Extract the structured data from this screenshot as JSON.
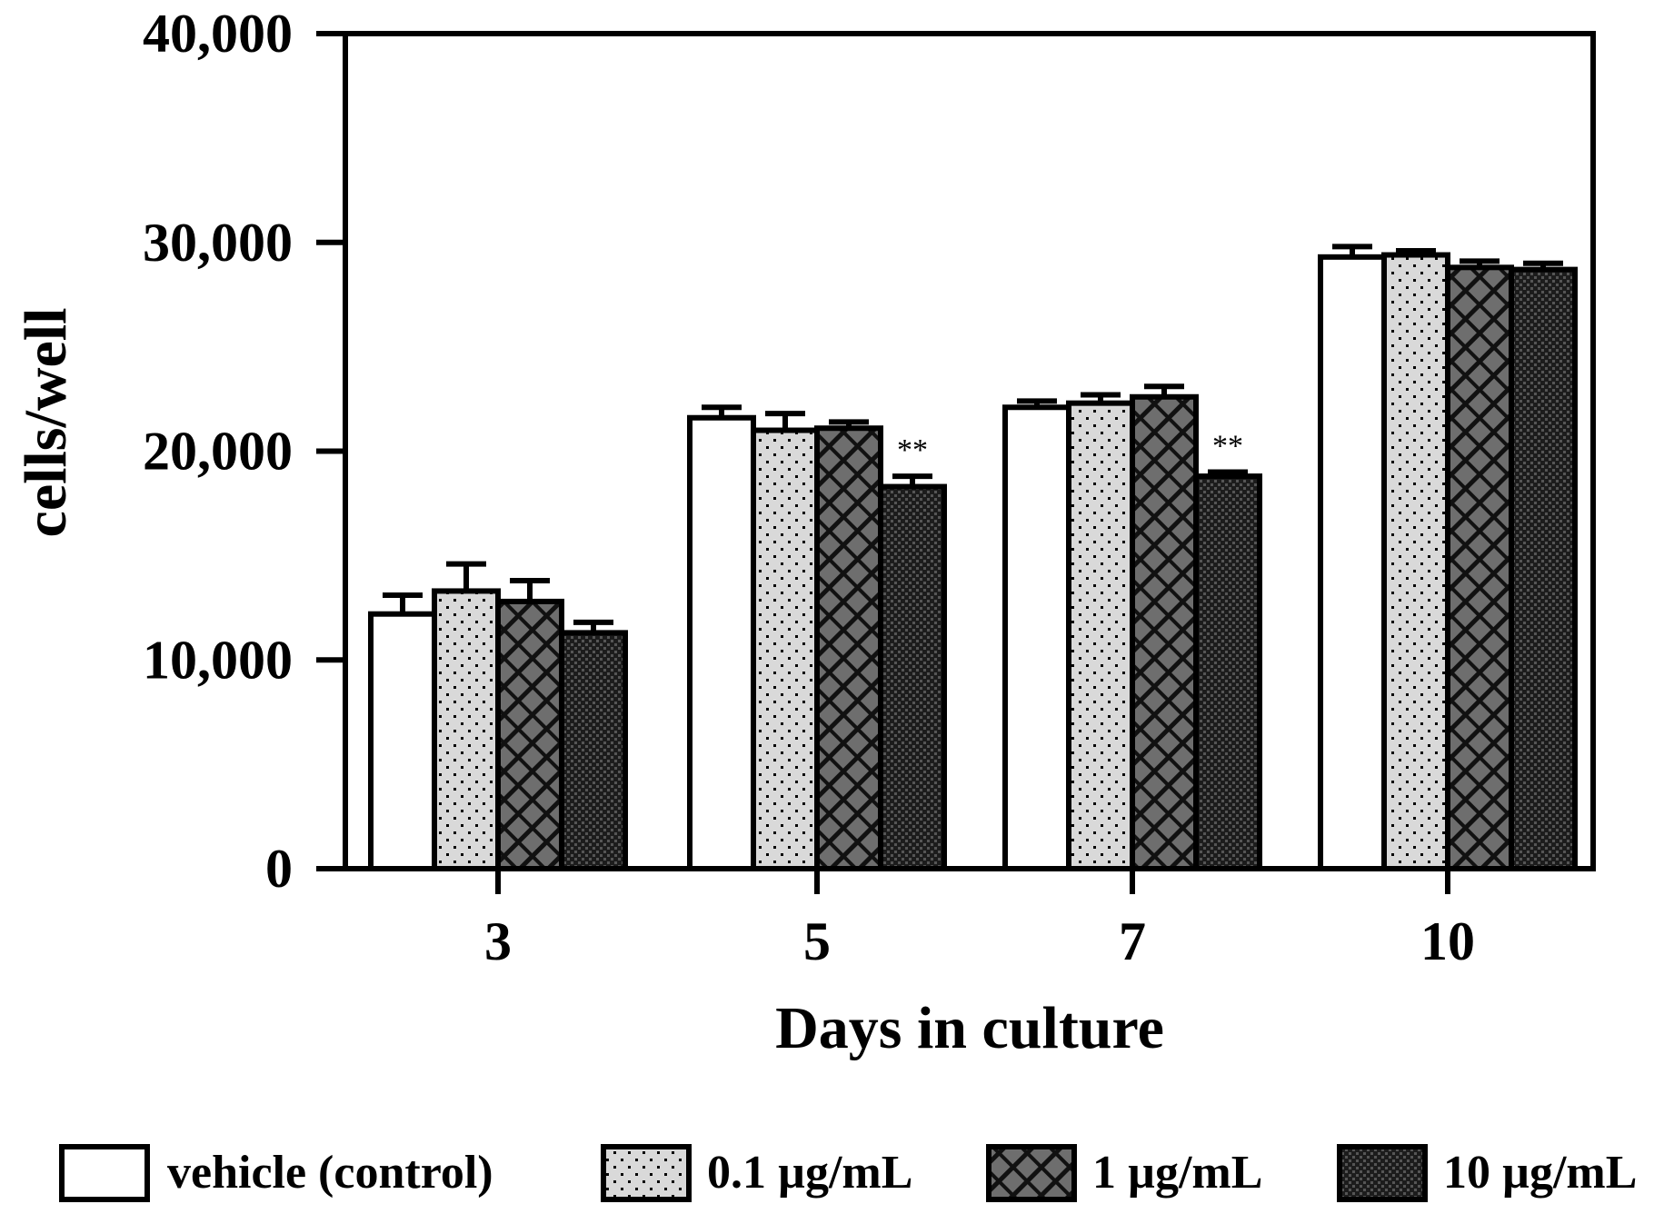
{
  "chart_data": {
    "type": "bar",
    "title": "",
    "xlabel": "Days in culture",
    "ylabel": "cells/well",
    "ylim": [
      0,
      40000
    ],
    "yticks": [
      0,
      10000,
      20000,
      30000,
      40000
    ],
    "ytick_labels": [
      "0",
      "10,000",
      "20,000",
      "30,000",
      "40,000"
    ],
    "categories": [
      "3",
      "5",
      "7",
      "10"
    ],
    "series": [
      {
        "name": "vehicle (control)",
        "pattern": "white",
        "values": [
          12200,
          21600,
          22100,
          29300
        ],
        "errors": [
          900,
          500,
          300,
          500
        ]
      },
      {
        "name": "0.1 µg/mL",
        "pattern": "dots",
        "values": [
          13300,
          21000,
          22300,
          29400
        ],
        "errors": [
          1300,
          800,
          400,
          200
        ]
      },
      {
        "name": "1 µg/mL",
        "pattern": "hatch",
        "values": [
          12800,
          21100,
          22600,
          28800
        ],
        "errors": [
          1000,
          300,
          500,
          300
        ]
      },
      {
        "name": "10 µg/mL",
        "pattern": "checker",
        "values": [
          11300,
          18300,
          18800,
          28700
        ],
        "errors": [
          500,
          500,
          200,
          300
        ]
      }
    ],
    "annotations": [
      {
        "category": "5",
        "series": "10 µg/mL",
        "text": "**"
      },
      {
        "category": "7",
        "series": "10 µg/mL",
        "text": "**"
      }
    ],
    "legend_position": "bottom",
    "colors": {
      "white": "#ffffff",
      "dots_bg": "#d9d9d9",
      "hatch_bg": "#6e6e6e",
      "checker_bg": "#1c1c1c",
      "stroke": "#000000"
    }
  }
}
